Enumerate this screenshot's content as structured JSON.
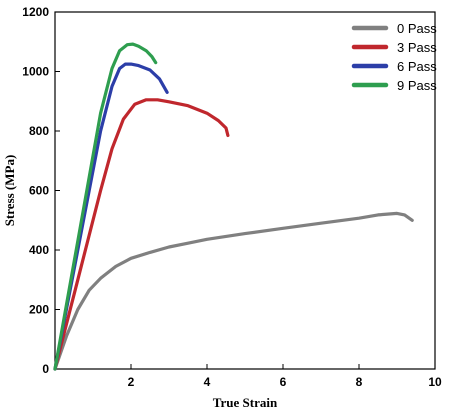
{
  "chart_data": {
    "type": "line",
    "title": "",
    "xlabel": "True Strain",
    "ylabel": "Stress (MPa)",
    "xlim": [
      0,
      10
    ],
    "ylim": [
      0,
      1200
    ],
    "xticks": [
      2,
      4,
      6,
      8,
      10
    ],
    "yticks": [
      0,
      200,
      400,
      600,
      800,
      1000,
      1200
    ],
    "grid": false,
    "legend_position": "top-right",
    "series": [
      {
        "name": "0 Pass",
        "color": "#808080",
        "x": [
          0,
          0.3,
          0.6,
          0.9,
          1.2,
          1.6,
          2.0,
          2.5,
          3.0,
          3.5,
          4.0,
          5.0,
          6.0,
          7.0,
          8.0,
          8.5,
          9.0,
          9.2,
          9.4
        ],
        "y": [
          0,
          110,
          200,
          265,
          305,
          345,
          372,
          392,
          410,
          423,
          436,
          455,
          473,
          490,
          507,
          518,
          523,
          518,
          500
        ]
      },
      {
        "name": "3 Pass",
        "color": "#c0272d",
        "x": [
          0,
          0.3,
          0.6,
          0.9,
          1.2,
          1.5,
          1.8,
          2.1,
          2.4,
          2.7,
          3.0,
          3.5,
          4.0,
          4.3,
          4.5,
          4.55
        ],
        "y": [
          0,
          150,
          300,
          450,
          600,
          740,
          840,
          890,
          905,
          905,
          898,
          885,
          860,
          835,
          810,
          785
        ]
      },
      {
        "name": "6 Pass",
        "color": "#2c3ea8",
        "x": [
          0,
          0.3,
          0.6,
          0.9,
          1.2,
          1.5,
          1.7,
          1.85,
          2.0,
          2.2,
          2.5,
          2.75,
          2.95
        ],
        "y": [
          0,
          200,
          400,
          600,
          800,
          950,
          1010,
          1025,
          1025,
          1020,
          1005,
          975,
          930
        ]
      },
      {
        "name": "9 Pass",
        "color": "#2e9e4f",
        "x": [
          0,
          0.3,
          0.6,
          0.9,
          1.2,
          1.5,
          1.7,
          1.9,
          2.05,
          2.2,
          2.4,
          2.55,
          2.65
        ],
        "y": [
          0,
          215,
          430,
          645,
          860,
          1010,
          1070,
          1090,
          1092,
          1085,
          1070,
          1050,
          1030
        ]
      }
    ]
  }
}
